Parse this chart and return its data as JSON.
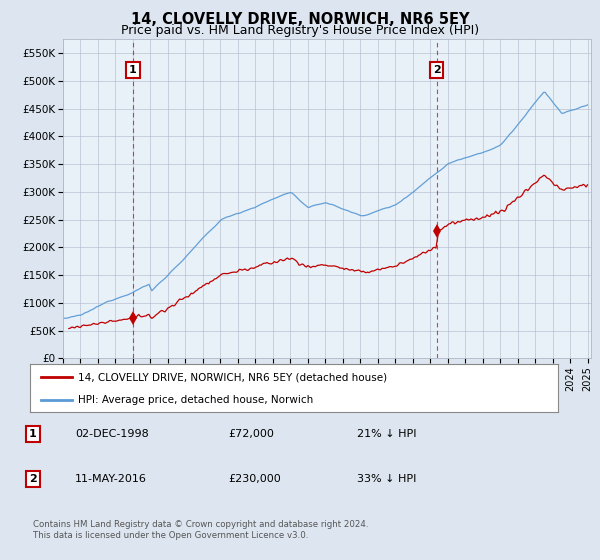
{
  "title": "14, CLOVELLY DRIVE, NORWICH, NR6 5EY",
  "subtitle": "Price paid vs. HM Land Registry's House Price Index (HPI)",
  "ylim": [
    0,
    575000
  ],
  "yticks": [
    0,
    50000,
    100000,
    150000,
    200000,
    250000,
    300000,
    350000,
    400000,
    450000,
    500000,
    550000
  ],
  "background_color": "#dde6f0",
  "plot_bg_color": "#e8f0f8",
  "hpi_line_color": "#5b9bd5",
  "price_line_color": "#c00000",
  "dashed_line_color": "#c00000",
  "annotation_box_color": "#c00000",
  "transaction1": {
    "price": 72000,
    "label": "1",
    "x": 1999.0
  },
  "transaction2": {
    "price": 230000,
    "label": "2",
    "x": 2016.37
  },
  "legend_entries": [
    "14, CLOVELLY DRIVE, NORWICH, NR6 5EY (detached house)",
    "HPI: Average price, detached house, Norwich"
  ],
  "table_rows": [
    [
      "1",
      "02-DEC-1998",
      "£72,000",
      "21% ↓ HPI"
    ],
    [
      "2",
      "11-MAY-2016",
      "£230,000",
      "33% ↓ HPI"
    ]
  ],
  "footer": "Contains HM Land Registry data © Crown copyright and database right 2024.\nThis data is licensed under the Open Government Licence v3.0.",
  "xmin": 1995.0,
  "xmax": 2025.2,
  "title_fontsize": 10.5,
  "subtitle_fontsize": 9,
  "axis_fontsize": 7.5
}
